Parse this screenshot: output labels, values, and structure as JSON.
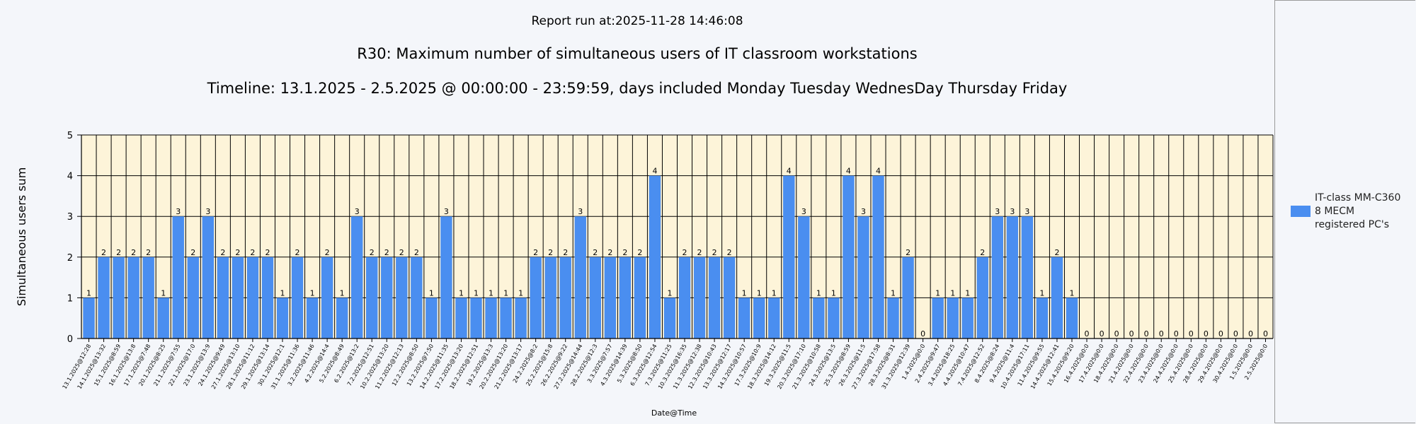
{
  "header": {
    "report_run": "Report run at:2025-11-28 14:46:08"
  },
  "chart_data": {
    "type": "bar",
    "title": "R30: Maximum number of simultaneous users of IT classroom workstations",
    "subtitle": "Timeline: 13.1.2025  - 2.5.2025  @  00:00:00 -  23:59:59, days included Monday Tuesday WednesDay Thursday Friday",
    "xlabel": "Date@Time",
    "ylabel": "Simultaneous users sum",
    "ylim": [
      0,
      5
    ],
    "yticks": [
      "0",
      "1",
      "2",
      "3",
      "4",
      "5"
    ],
    "grid": true,
    "legend_position": "right",
    "colors": {
      "bar": "#4a8ef0",
      "plot_bg": "#fdf4d9",
      "grid": "#000000"
    },
    "categories": [
      "13.1.2025@12:28",
      "14.1.2025@13:32",
      "15.1.2025@8:59",
      "16.1.2025@13:8",
      "17.1.2025@7:48",
      "20.1.2025@8:25",
      "21.1.2025@7:55",
      "22.1.2025@17:0",
      "23.1.2025@13:9",
      "24.1.2025@9:49",
      "27.1.2025@13:10",
      "28.1.2025@11:12",
      "29.1.2025@13:14",
      "30.1.2025@12:1",
      "31.1.2025@11:36",
      "3.2.2025@11:46",
      "4.2.2025@14:4",
      "5.2.2025@8:49",
      "6.2.2025@13:2",
      "7.2.2025@12:51",
      "10.2.2025@13:20",
      "11.2.2025@12:13",
      "12.2.2025@8:50",
      "13.2.2025@7:50",
      "14.2.2025@11:35",
      "17.2.2025@13:20",
      "18.2.2025@12:51",
      "19.2.2025@13:3",
      "20.2.2025@13:20",
      "21.2.2025@13:17",
      "24.2.2025@8:2",
      "25.2.2025@15:8",
      "26.2.2025@9:22",
      "27.2.2025@14:44",
      "28.2.2025@12:3",
      "3.3.2025@7:57",
      "4.3.2025@14:39",
      "5.3.2025@8:50",
      "6.3.2025@12:54",
      "7.3.2025@11:25",
      "10.3.2025@16:35",
      "11.3.2025@12:38",
      "12.3.2025@10:43",
      "13.3.2025@12:17",
      "14.3.2025@10:57",
      "17.3.2025@10:9",
      "18.3.2025@14:12",
      "19.3.2025@11:5",
      "20.3.2025@17:10",
      "21.3.2025@10:58",
      "24.3.2025@13:5",
      "25.3.2025@8:59",
      "26.3.2025@11:5",
      "27.3.2025@17:58",
      "28.3.2025@8:31",
      "31.3.2025@12:39",
      "1.4.2025@0:0",
      "2.4.2025@9:47",
      "3.4.2025@18:25",
      "4.4.2025@10:47",
      "7.4.2025@12:52",
      "8.4.2025@8:24",
      "9.4.2025@11:4",
      "10.4.2025@17:11",
      "11.4.2025@9:55",
      "14.4.2025@12:41",
      "15.4.2025@9:20",
      "16.4.2025@0:0",
      "17.4.2025@0:0",
      "18.4.2025@0:0",
      "21.4.2025@0:0",
      "22.4.2025@0:0",
      "23.4.2025@0:0",
      "24.4.2025@0:0",
      "25.4.2025@0:0",
      "28.4.2025@0:0",
      "29.4.2025@0:0",
      "30.4.2025@0:0",
      "1.5.2025@0:0",
      "2.5.2025@0:0"
    ],
    "series": [
      {
        "name": "IT-class MM-C360 8 MECM registered PC's",
        "values": [
          1,
          2,
          2,
          2,
          2,
          1,
          3,
          2,
          3,
          2,
          2,
          2,
          2,
          1,
          2,
          1,
          2,
          1,
          3,
          2,
          2,
          2,
          2,
          1,
          3,
          1,
          1,
          1,
          1,
          1,
          2,
          2,
          2,
          3,
          2,
          2,
          2,
          2,
          4,
          1,
          2,
          2,
          2,
          2,
          1,
          1,
          1,
          4,
          3,
          1,
          1,
          4,
          3,
          4,
          1,
          2,
          0,
          1,
          1,
          1,
          2,
          3,
          3,
          3,
          1,
          2,
          1,
          0,
          0,
          0,
          0,
          0,
          0,
          0,
          0,
          0,
          0,
          0,
          0,
          0
        ]
      }
    ]
  },
  "legend": {
    "lines": [
      "IT-class MM-C360",
      "8 MECM",
      "registered PC's"
    ]
  }
}
